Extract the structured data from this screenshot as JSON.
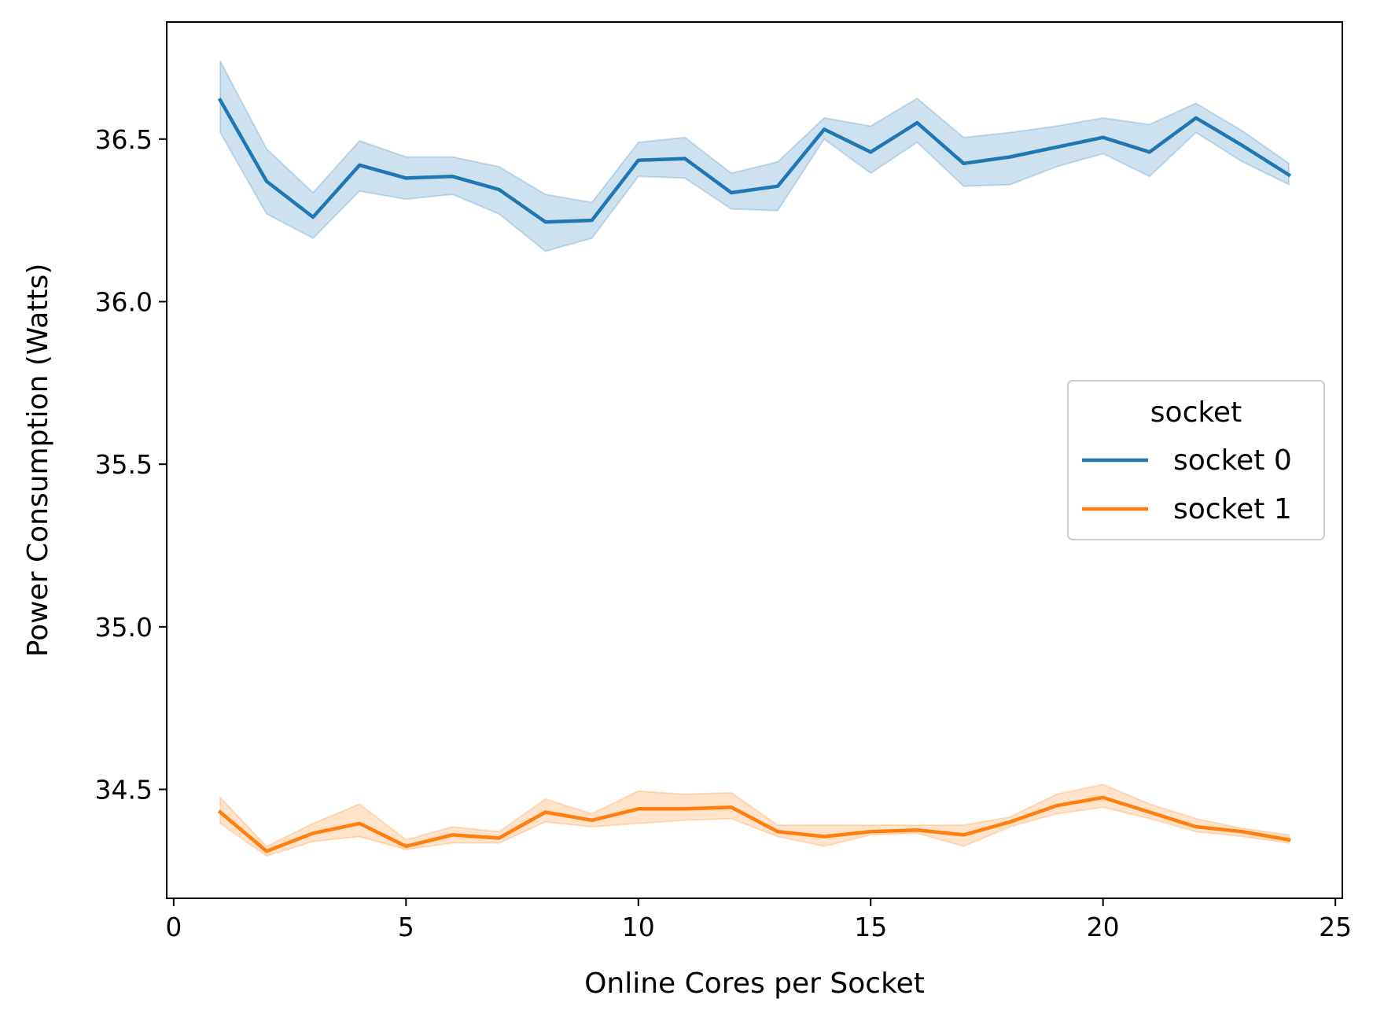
{
  "chart_data": {
    "type": "line",
    "xlabel": "Online Cores per Socket",
    "ylabel": "Power Consumption (Watts)",
    "xlim": [
      -0.15,
      25.15
    ],
    "ylim": [
      34.165,
      36.86
    ],
    "xticks": [
      0,
      5,
      10,
      15,
      20,
      25
    ],
    "xtick_labels": [
      "0",
      "5",
      "10",
      "15",
      "20",
      "25"
    ],
    "yticks": [
      34.5,
      35.0,
      35.5,
      36.0,
      36.5
    ],
    "ytick_labels": [
      "34.5",
      "35.0",
      "35.5",
      "36.0",
      "36.5"
    ],
    "grid": false,
    "legend": {
      "title": "socket",
      "placement": "center-right"
    },
    "x": [
      1,
      2,
      3,
      4,
      5,
      6,
      7,
      8,
      9,
      10,
      11,
      12,
      13,
      14,
      15,
      16,
      17,
      18,
      19,
      20,
      21,
      22,
      23,
      24
    ],
    "series": [
      {
        "name": "socket 0",
        "color": "#1f77b4",
        "values": [
          36.62,
          36.37,
          36.26,
          36.42,
          36.38,
          36.385,
          36.345,
          36.245,
          36.25,
          36.435,
          36.44,
          36.335,
          36.355,
          36.53,
          36.46,
          36.55,
          36.425,
          36.445,
          36.475,
          36.505,
          36.46,
          36.565,
          36.48,
          36.39
        ],
        "lower": [
          36.52,
          36.27,
          36.195,
          36.34,
          36.315,
          36.33,
          36.27,
          36.155,
          36.195,
          36.385,
          36.38,
          36.285,
          36.28,
          36.5,
          36.395,
          36.49,
          36.355,
          36.36,
          36.415,
          36.455,
          36.385,
          36.52,
          36.43,
          36.36
        ],
        "upper": [
          36.74,
          36.47,
          36.335,
          36.495,
          36.445,
          36.445,
          36.415,
          36.33,
          36.305,
          36.49,
          36.505,
          36.395,
          36.43,
          36.565,
          36.54,
          36.625,
          36.505,
          36.52,
          36.54,
          36.565,
          36.545,
          36.61,
          36.525,
          36.425
        ]
      },
      {
        "name": "socket 1",
        "color": "#ff7f0e",
        "values": [
          34.43,
          34.31,
          34.365,
          34.395,
          34.325,
          34.36,
          34.35,
          34.43,
          34.405,
          34.44,
          34.44,
          34.445,
          34.37,
          34.355,
          34.37,
          34.375,
          34.36,
          34.4,
          34.45,
          34.475,
          34.43,
          34.385,
          34.37,
          34.345
        ],
        "lower": [
          34.395,
          34.295,
          34.34,
          34.355,
          34.315,
          34.335,
          34.335,
          34.4,
          34.385,
          34.395,
          34.405,
          34.41,
          34.355,
          34.325,
          34.36,
          34.365,
          34.325,
          34.385,
          34.425,
          34.445,
          34.41,
          34.37,
          34.355,
          34.335
        ],
        "upper": [
          34.475,
          34.325,
          34.395,
          34.455,
          34.345,
          34.385,
          34.37,
          34.47,
          34.425,
          34.495,
          34.485,
          34.49,
          34.39,
          34.39,
          34.39,
          34.39,
          34.39,
          34.415,
          34.485,
          34.515,
          34.455,
          34.41,
          34.38,
          34.36
        ]
      }
    ]
  }
}
